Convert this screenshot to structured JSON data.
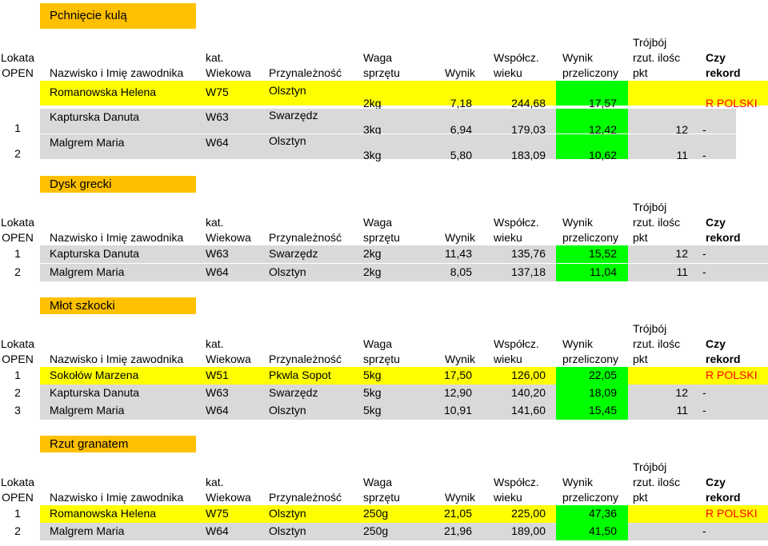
{
  "headers": {
    "lokata1": "Lokata",
    "lokata2": "OPEN",
    "name": "Nazwisko i Imię zawodnika",
    "kat1": "kat.",
    "kat2": "Wiekowa",
    "przyn": "Przynależność",
    "waga1": "Waga",
    "waga2": "sprzętu",
    "wynik": "Wynik",
    "wsp1": "Współcz.",
    "wsp2": "wieku",
    "wp1": "Wynik",
    "wp2": "przeliczony",
    "tr1": "Trójbój",
    "tr2": "rzut. ilośc",
    "tr3": "pkt",
    "czy1": "Czy",
    "czy2": "rekord"
  },
  "colors": {
    "yellow": "#ffff00",
    "gray": "#d9d9d9",
    "green": "#00ff00",
    "orange": "#ffc000",
    "red": "#ff0000"
  },
  "sections": [
    {
      "title": "Pchnięcie kulą",
      "rows": [
        {
          "lokata": "",
          "name": "Romanowska Helena",
          "kat": "W75",
          "club": "Olsztyn",
          "waga": "2kg",
          "wynik": "7,18",
          "wsp": "244,68",
          "wp": "17,57",
          "pkt": "",
          "rekord": "R POLSKI",
          "style": "yellow"
        },
        {
          "lokata": "1",
          "name": "Kapturska Danuta",
          "kat": "W63",
          "club": "Swarzędz",
          "waga": "3kg",
          "wynik": "6,94",
          "wsp": "179,03",
          "wp": "12,42",
          "pkt": "12",
          "rekord": "-",
          "style": "gray"
        },
        {
          "lokata": "2",
          "name": "Malgrem Maria",
          "kat": "W64",
          "club": "Olsztyn",
          "waga": "3kg",
          "wynik": "5,80",
          "wsp": "183,09",
          "wp": "10,62",
          "pkt": "11",
          "rekord": "-",
          "style": "gray"
        }
      ]
    },
    {
      "title": "Dysk grecki",
      "rows": [
        {
          "lokata": "1",
          "name": "Kapturska Danuta",
          "kat": "W63",
          "club": "Swarzędz",
          "waga": "2kg",
          "wynik": "11,43",
          "wsp": "135,76",
          "wp": "15,52",
          "pkt": "12",
          "rekord": "-",
          "style": "gray"
        },
        {
          "lokata": "2",
          "name": "Malgrem Maria",
          "kat": "W64",
          "club": "Olsztyn",
          "waga": "2kg",
          "wynik": "8,05",
          "wsp": "137,18",
          "wp": "11,04",
          "pkt": "11",
          "rekord": "-",
          "style": "gray"
        }
      ]
    },
    {
      "title": "Młot szkocki",
      "rows": [
        {
          "lokata": "1",
          "name": "Sokołów Marzena",
          "kat": "W51",
          "club": "Pkwla Sopot",
          "waga": "5kg",
          "wynik": "17,50",
          "wsp": "126,00",
          "wp": "22,05",
          "pkt": "",
          "rekord": "R POLSKI",
          "style": "yellow"
        },
        {
          "lokata": "2",
          "name": "Kapturska Danuta",
          "kat": "W63",
          "club": "Swarzędz",
          "waga": "5kg",
          "wynik": "12,90",
          "wsp": "140,20",
          "wp": "18,09",
          "pkt": "12",
          "rekord": "-",
          "style": "gray"
        },
        {
          "lokata": "3",
          "name": "Malgrem Maria",
          "kat": "W64",
          "club": "Olsztyn",
          "waga": "5kg",
          "wynik": "10,91",
          "wsp": "141,60",
          "wp": "15,45",
          "pkt": "11",
          "rekord": "-",
          "style": "gray"
        }
      ]
    },
    {
      "title": "Rzut granatem",
      "rows": [
        {
          "lokata": "1",
          "name": "Romanowska Helena",
          "kat": "W75",
          "club": "Olsztyn",
          "waga": "250g",
          "wynik": "21,05",
          "wsp": "225,00",
          "wp": "47,36",
          "pkt": "",
          "rekord": "R POLSKI",
          "style": "yellow"
        },
        {
          "lokata": "2",
          "name": "Malgrem Maria",
          "kat": "W64",
          "club": "Olsztyn",
          "waga": "250g",
          "wynik": "21,96",
          "wsp": "189,00",
          "wp": "41,50",
          "pkt": "",
          "rekord": "-",
          "style": "gray"
        }
      ]
    }
  ]
}
